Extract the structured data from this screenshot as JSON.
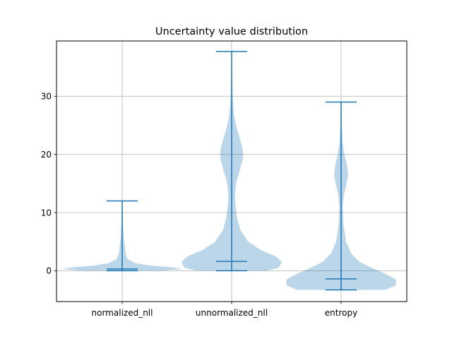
{
  "chart_data": {
    "type": "violin",
    "title": "Uncertainty value distribution",
    "xlabel": "",
    "ylabel": "",
    "categories": [
      "normalized_nll",
      "unnormalized_nll",
      "entropy"
    ],
    "ylim": [
      -5.3,
      39.5
    ],
    "yticks": [
      0,
      10,
      20,
      30
    ],
    "grid": true,
    "colors": {
      "body": "#1f77b4",
      "body_opacity": 0.3,
      "lines": "#1f77b4",
      "grid": "#b0b0b0",
      "axes": "#000000"
    },
    "violins": [
      {
        "category": "normalized_nll",
        "min": 0.0,
        "max": 12.0,
        "median": 0.3,
        "profile": [
          [
            0.0,
            0.35
          ],
          [
            0.3,
            0.55
          ],
          [
            0.6,
            0.45
          ],
          [
            0.9,
            0.25
          ],
          [
            1.3,
            0.12
          ],
          [
            2.0,
            0.05
          ],
          [
            3.0,
            0.03
          ],
          [
            4.0,
            0.025
          ],
          [
            5.5,
            0.015
          ],
          [
            7.0,
            0.01
          ],
          [
            9.0,
            0.006
          ],
          [
            12.0,
            0.004
          ]
        ]
      },
      {
        "category": "unnormalized_nll",
        "min": 0.0,
        "max": 37.7,
        "median": 1.6,
        "profile": [
          [
            0.0,
            0.32
          ],
          [
            0.5,
            0.43
          ],
          [
            1.5,
            0.46
          ],
          [
            2.5,
            0.4
          ],
          [
            3.5,
            0.27
          ],
          [
            5.0,
            0.15
          ],
          [
            7.0,
            0.08
          ],
          [
            9.0,
            0.05
          ],
          [
            11.0,
            0.035
          ],
          [
            13.0,
            0.03
          ],
          [
            15.0,
            0.04
          ],
          [
            17.0,
            0.07
          ],
          [
            19.0,
            0.1
          ],
          [
            20.0,
            0.105
          ],
          [
            21.0,
            0.1
          ],
          [
            23.0,
            0.07
          ],
          [
            25.0,
            0.04
          ],
          [
            27.0,
            0.02
          ],
          [
            29.0,
            0.012
          ],
          [
            31.0,
            0.008
          ],
          [
            34.0,
            0.004
          ],
          [
            37.7,
            0.003
          ]
        ]
      },
      {
        "category": "entropy",
        "min": -3.3,
        "max": 29.0,
        "median": -1.4,
        "profile": [
          [
            -3.3,
            0.4
          ],
          [
            -2.5,
            0.5
          ],
          [
            -1.5,
            0.5
          ],
          [
            -0.5,
            0.4
          ],
          [
            0.5,
            0.28
          ],
          [
            1.5,
            0.17
          ],
          [
            3.0,
            0.09
          ],
          [
            5.0,
            0.045
          ],
          [
            8.0,
            0.022
          ],
          [
            11.0,
            0.016
          ],
          [
            13.0,
            0.025
          ],
          [
            15.0,
            0.05
          ],
          [
            16.5,
            0.065
          ],
          [
            18.0,
            0.055
          ],
          [
            20.0,
            0.03
          ],
          [
            22.0,
            0.015
          ],
          [
            25.0,
            0.006
          ],
          [
            29.0,
            0.003
          ]
        ]
      }
    ]
  }
}
